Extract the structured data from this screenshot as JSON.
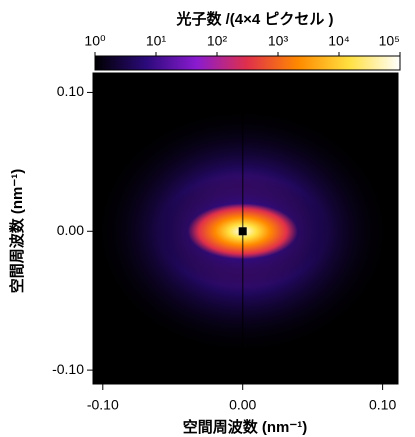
{
  "chart_data": {
    "type": "heatmap",
    "title": "光子数 /(4×4 ピクセル )",
    "x_label": "空間周波数 (nm⁻¹)",
    "y_label": "空間周波数 (nm⁻¹)",
    "xlim": [
      -0.107,
      0.111
    ],
    "ylim": [
      -0.11,
      0.114
    ],
    "xticks": [
      {
        "value": -0.1,
        "label": "-0.10"
      },
      {
        "value": 0,
        "label": "0.00"
      },
      {
        "value": 0.1,
        "label": "0.10"
      }
    ],
    "yticks": [
      {
        "value": -0.1,
        "label": "-0.10"
      },
      {
        "value": 0,
        "label": "0.00"
      },
      {
        "value": 0.1,
        "label": "0.10"
      }
    ],
    "colorbar": {
      "lim": [
        1,
        100000
      ],
      "log": true,
      "ticks": [
        {
          "value": 1,
          "label": "10⁰"
        },
        {
          "value": 10,
          "label": "10¹"
        },
        {
          "value": 100,
          "label": "10²"
        },
        {
          "value": 1000,
          "label": "10³"
        },
        {
          "value": 10000,
          "label": "10⁴"
        },
        {
          "value": 100000,
          "label": "10⁵"
        }
      ],
      "colormap": [
        "#000000",
        "#2b0a7a",
        "#8a1bd0",
        "#e0304a",
        "#ff8a00",
        "#ffe040",
        "#ffffff"
      ]
    }
  }
}
